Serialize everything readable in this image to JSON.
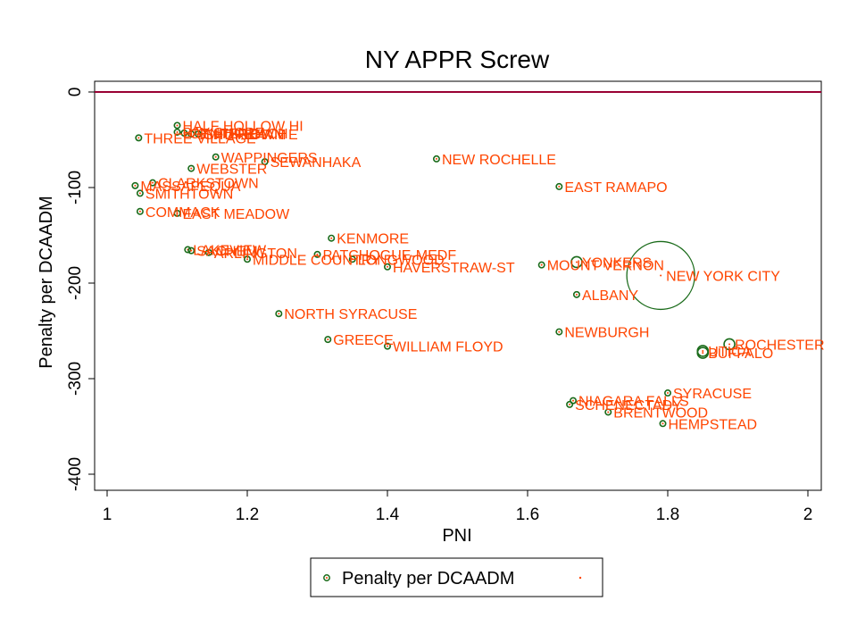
{
  "chart_data": {
    "type": "scatter",
    "title": "NY APPR Screw",
    "xlabel": "PNI",
    "ylabel": "Penalty per DCAADM",
    "xlim": [
      1,
      2
    ],
    "ylim": [
      -400,
      0
    ],
    "xticks": [
      "1",
      "1.2",
      "1.4",
      "1.6",
      "1.8",
      "2"
    ],
    "yticks": [
      "-400",
      "-300",
      "-200",
      "-100",
      "0"
    ],
    "reference_line": {
      "y": 0,
      "color": "#990033"
    },
    "legend": {
      "placement": "bottom",
      "entries": [
        {
          "label": "Penalty per DCAADM",
          "marker": "hollow-circle",
          "color": "#1a6b1a"
        },
        {
          "label": "",
          "marker": "dot",
          "color": "#ff4500"
        }
      ]
    },
    "colors": {
      "marker": "#1a6b1a",
      "label": "#ff4500"
    },
    "series": [
      {
        "name": "Penalty per DCAADM",
        "points": [
          {
            "label": "HALF HOLLOW HI",
            "x": 1.1,
            "y": -35,
            "size": 1
          },
          {
            "label": "BAY SHORE",
            "x": 1.1,
            "y": -42,
            "size": 1
          },
          {
            "label": "CENTEREACH",
            "x": 1.11,
            "y": -43,
            "size": 1
          },
          {
            "label": "SMITHTOWN E",
            "x": 1.12,
            "y": -44,
            "size": 1
          },
          {
            "label": "SHOREHAM",
            "x": 1.13,
            "y": -44,
            "size": 1
          },
          {
            "label": "THREE VILLAGE",
            "x": 1.045,
            "y": -48,
            "size": 1
          },
          {
            "label": "WAPPINGERS",
            "x": 1.155,
            "y": -68,
            "size": 1
          },
          {
            "label": "SEWANHAKA",
            "x": 1.225,
            "y": -73,
            "size": 1
          },
          {
            "label": "WEBSTER",
            "x": 1.12,
            "y": -80,
            "size": 1
          },
          {
            "label": "NEW ROCHELLE",
            "x": 1.47,
            "y": -70,
            "size": 1
          },
          {
            "label": "CLARKSTOWN",
            "x": 1.065,
            "y": -95,
            "size": 1
          },
          {
            "label": "MASSAPEQUA",
            "x": 1.04,
            "y": -98,
            "size": 1
          },
          {
            "label": "SMITHTOWN",
            "x": 1.047,
            "y": -106,
            "size": 1
          },
          {
            "label": "EAST RAMAPO",
            "x": 1.645,
            "y": -99,
            "size": 1
          },
          {
            "label": "COMMACK",
            "x": 1.047,
            "y": -125,
            "size": 1
          },
          {
            "label": "EAST MEADOW",
            "x": 1.1,
            "y": -127,
            "size": 1
          },
          {
            "label": "KENMORE",
            "x": 1.32,
            "y": -153,
            "size": 1
          },
          {
            "label": "LAKEVIEW",
            "x": 1.115,
            "y": -165,
            "size": 1
          },
          {
            "label": "SACHEM",
            "x": 1.12,
            "y": -166,
            "size": 1
          },
          {
            "label": "ARLINGTON",
            "x": 1.145,
            "y": -168,
            "size": 1
          },
          {
            "label": "PATCHOGUE-MEDF",
            "x": 1.3,
            "y": -170,
            "size": 1
          },
          {
            "label": "MIDDLE COUNTRY",
            "x": 1.2,
            "y": -175,
            "size": 1
          },
          {
            "label": "LONGWOOD",
            "x": 1.35,
            "y": -175,
            "size": 1
          },
          {
            "label": "HAVERSTRAW-ST",
            "x": 1.4,
            "y": -183,
            "size": 1
          },
          {
            "label": "MOUNT VERNON",
            "x": 1.62,
            "y": -181,
            "size": 1
          },
          {
            "label": "YONKERS",
            "x": 1.67,
            "y": -178,
            "size": 2
          },
          {
            "label": "NEW YORK CITY",
            "x": 1.79,
            "y": -192,
            "size": 12
          },
          {
            "label": "ALBANY",
            "x": 1.67,
            "y": -212,
            "size": 1
          },
          {
            "label": "NORTH SYRACUSE",
            "x": 1.245,
            "y": -232,
            "size": 1
          },
          {
            "label": "NEWBURGH",
            "x": 1.645,
            "y": -251,
            "size": 1
          },
          {
            "label": "GREECE",
            "x": 1.315,
            "y": -259,
            "size": 1
          },
          {
            "label": "WILLIAM FLOYD",
            "x": 1.4,
            "y": -266,
            "size": 1
          },
          {
            "label": "ROCHESTER",
            "x": 1.888,
            "y": -264,
            "size": 2
          },
          {
            "label": "UTICA",
            "x": 1.85,
            "y": -271,
            "size": 2
          },
          {
            "label": "BUFFALO",
            "x": 1.85,
            "y": -273,
            "size": 2
          },
          {
            "label": "SYRACUSE",
            "x": 1.8,
            "y": -315,
            "size": 1
          },
          {
            "label": "NIAGARA FALLS",
            "x": 1.665,
            "y": -323,
            "size": 1
          },
          {
            "label": "SCHENECTADY",
            "x": 1.66,
            "y": -327,
            "size": 1
          },
          {
            "label": "BRENTWOOD",
            "x": 1.715,
            "y": -335,
            "size": 1
          },
          {
            "label": "HEMPSTEAD",
            "x": 1.793,
            "y": -347,
            "size": 1
          }
        ]
      }
    ]
  }
}
